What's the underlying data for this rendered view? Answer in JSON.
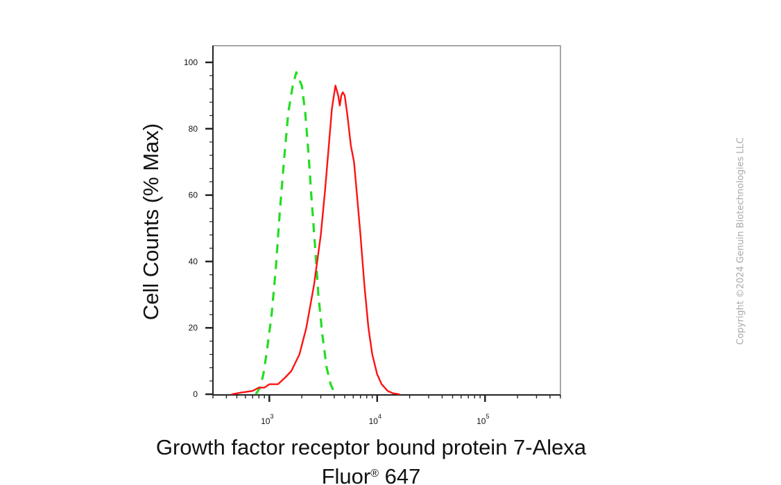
{
  "chart_data": {
    "type": "line",
    "title": "",
    "xlabel_line1": "Growth factor receptor bound protein 7-Alexa",
    "xlabel_line2_prefix": "Fluor",
    "xlabel_line2_mark": "®",
    "xlabel_line2_suffix": " 647",
    "ylabel": "Cell Counts (% Max)",
    "x_scale": "log",
    "xlim": [
      300,
      500000
    ],
    "ylim": [
      0,
      100
    ],
    "y_ticks": [
      0,
      20,
      40,
      60,
      80,
      100
    ],
    "x_ticks": [
      {
        "value": 1000,
        "base": "10",
        "exp": "3"
      },
      {
        "value": 10000,
        "base": "10",
        "exp": "4"
      },
      {
        "value": 100000,
        "base": "10",
        "exp": "5"
      }
    ],
    "grid": false,
    "legend": "none",
    "series": [
      {
        "color": "#22dd22",
        "style": "dashed",
        "points": [
          [
            750,
            0
          ],
          [
            820,
            2
          ],
          [
            880,
            6
          ],
          [
            950,
            13
          ],
          [
            1050,
            24
          ],
          [
            1150,
            38
          ],
          [
            1250,
            55
          ],
          [
            1380,
            72
          ],
          [
            1500,
            85
          ],
          [
            1650,
            93
          ],
          [
            1780,
            97
          ],
          [
            1880,
            95
          ],
          [
            2000,
            93
          ],
          [
            2150,
            85
          ],
          [
            2300,
            73
          ],
          [
            2450,
            60
          ],
          [
            2650,
            45
          ],
          [
            2850,
            30
          ],
          [
            3100,
            18
          ],
          [
            3400,
            8
          ],
          [
            3700,
            3
          ],
          [
            4000,
            0.5
          ],
          [
            4300,
            0
          ]
        ]
      },
      {
        "color": "#ff1111",
        "style": "solid",
        "points": [
          [
            450,
            0
          ],
          [
            550,
            0.5
          ],
          [
            700,
            1
          ],
          [
            800,
            2
          ],
          [
            900,
            2
          ],
          [
            1000,
            3
          ],
          [
            1200,
            3
          ],
          [
            1400,
            5
          ],
          [
            1600,
            7
          ],
          [
            1900,
            12
          ],
          [
            2200,
            20
          ],
          [
            2600,
            33
          ],
          [
            3000,
            48
          ],
          [
            3300,
            62
          ],
          [
            3500,
            72
          ],
          [
            3800,
            86
          ],
          [
            4100,
            93
          ],
          [
            4350,
            90
          ],
          [
            4500,
            87
          ],
          [
            4650,
            90
          ],
          [
            4800,
            91
          ],
          [
            5000,
            90
          ],
          [
            5300,
            84
          ],
          [
            5700,
            75
          ],
          [
            6100,
            70
          ],
          [
            6500,
            60
          ],
          [
            7000,
            48
          ],
          [
            7600,
            33
          ],
          [
            8300,
            20
          ],
          [
            9000,
            12
          ],
          [
            10000,
            6
          ],
          [
            11000,
            3
          ],
          [
            12500,
            1
          ],
          [
            14000,
            0.3
          ],
          [
            16000,
            0
          ]
        ]
      }
    ]
  },
  "watermark": "Copyright ©2024 Genuin Biotechnologies LLC"
}
